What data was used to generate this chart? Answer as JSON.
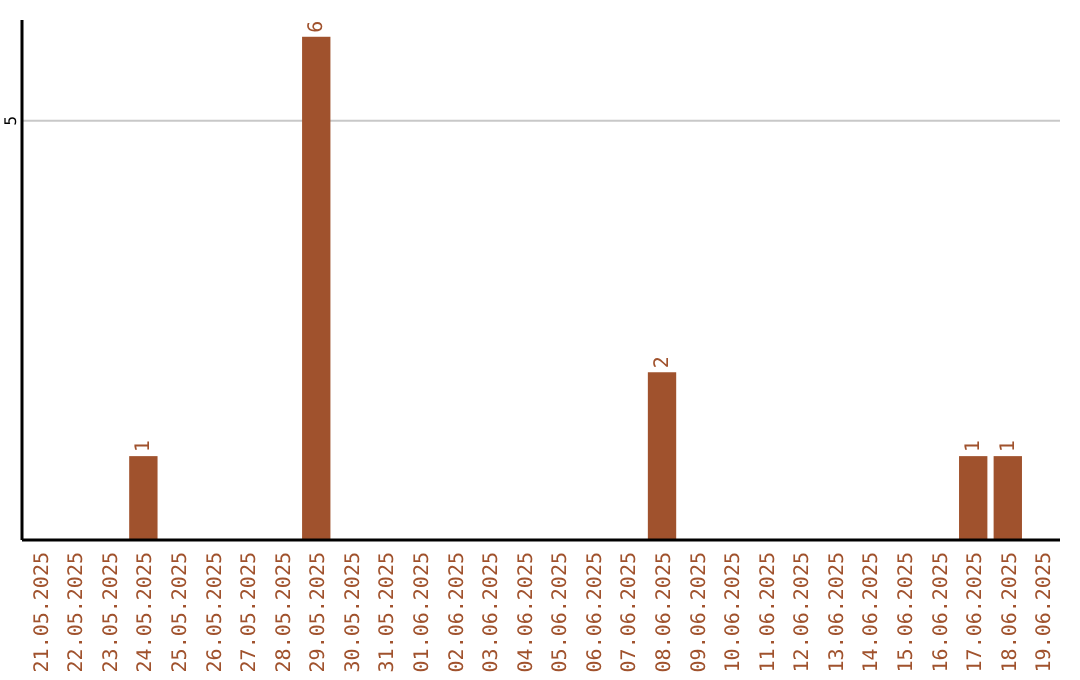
{
  "chart_data": {
    "type": "bar",
    "categories": [
      "21.05.2025",
      "22.05.2025",
      "23.05.2025",
      "24.05.2025",
      "25.05.2025",
      "26.05.2025",
      "27.05.2025",
      "28.05.2025",
      "29.05.2025",
      "30.05.2025",
      "31.05.2025",
      "01.06.2025",
      "02.06.2025",
      "03.06.2025",
      "04.06.2025",
      "05.06.2025",
      "06.06.2025",
      "07.06.2025",
      "08.06.2025",
      "09.06.2025",
      "10.06.2025",
      "11.06.2025",
      "12.06.2025",
      "13.06.2025",
      "14.06.2025",
      "15.06.2025",
      "16.06.2025",
      "17.06.2025",
      "18.06.2025",
      "19.06.2025"
    ],
    "values": [
      0,
      0,
      0,
      1,
      0,
      0,
      0,
      0,
      6,
      0,
      0,
      0,
      0,
      0,
      0,
      0,
      0,
      0,
      2,
      0,
      0,
      0,
      0,
      0,
      0,
      0,
      0,
      1,
      1,
      0
    ],
    "value_labels": [
      null,
      null,
      null,
      "1",
      null,
      null,
      null,
      null,
      "6",
      null,
      null,
      null,
      null,
      null,
      null,
      null,
      null,
      null,
      "2",
      null,
      null,
      null,
      null,
      null,
      null,
      null,
      null,
      "1",
      "1",
      null
    ],
    "color": "#a0522d",
    "ylim": [
      0,
      6.2
    ],
    "yticks": [
      5
    ],
    "grid": "y"
  }
}
